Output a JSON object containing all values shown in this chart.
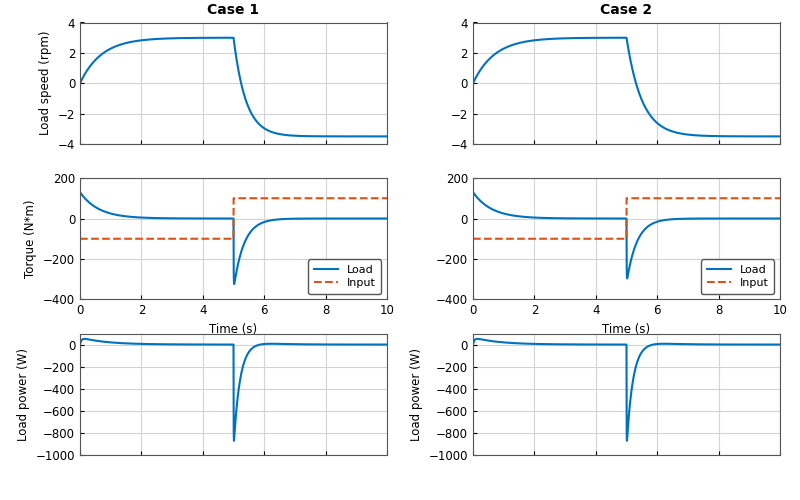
{
  "title_case1": "Case 1",
  "title_case2": "Case 2",
  "ylabel_speed": "Load speed (rpm)",
  "ylabel_torque": "Torque (N*m)",
  "ylabel_power": "Load power (W)",
  "xlabel_time": "Time (s)",
  "legend_load": "Load",
  "legend_input": "Input",
  "xlim": [
    0,
    10
  ],
  "ylim_speed": [
    -4,
    4
  ],
  "ylim_torque": [
    -400,
    200
  ],
  "ylim_power": [
    -1000,
    100
  ],
  "line_color_load": "#0072BD",
  "line_color_input": "#D95319",
  "grid_color": "#D3D3D3",
  "background_color": "#FFFFFF",
  "t_transition": 5.0,
  "speed_settle": -3.5,
  "speed_plateau": 3.0,
  "torque_input_before": -100,
  "torque_input_after": 100,
  "torque_load_peak": -350,
  "power_peak": -950,
  "case2_power_peak": -950
}
